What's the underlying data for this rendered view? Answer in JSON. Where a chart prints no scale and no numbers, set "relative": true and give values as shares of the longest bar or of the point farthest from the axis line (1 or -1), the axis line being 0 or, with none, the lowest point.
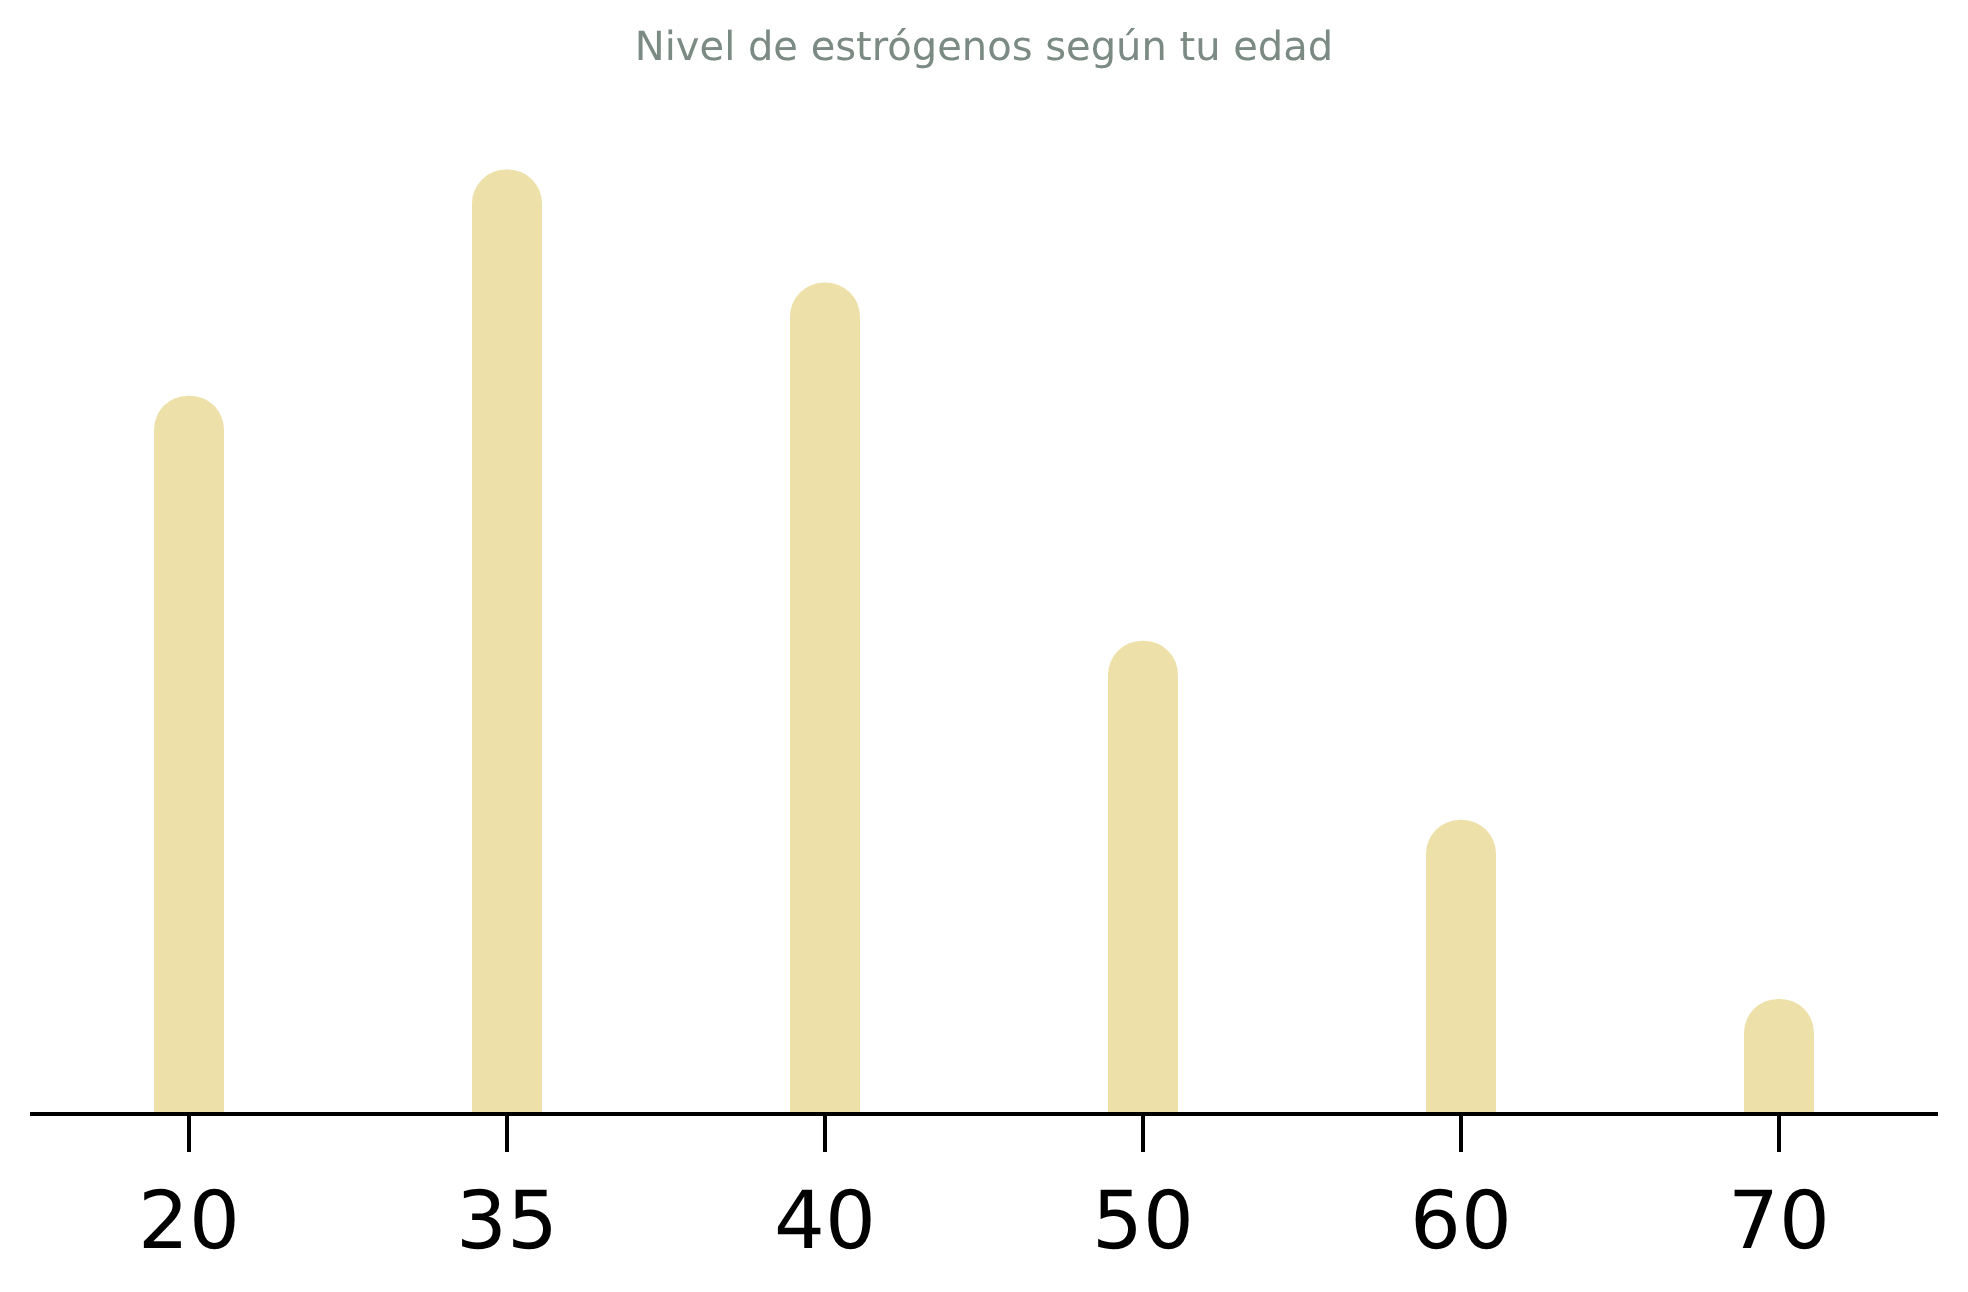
{
  "chart_data": {
    "type": "bar",
    "title": "Nivel de estrógenos según tu edad",
    "categories": [
      "20",
      "35",
      "40",
      "50",
      "60",
      "70"
    ],
    "values": [
      0.76,
      1,
      0.88,
      0.5,
      0.31,
      0.12
    ],
    "color": "#ede0a8",
    "relative": true,
    "legend": false
  }
}
